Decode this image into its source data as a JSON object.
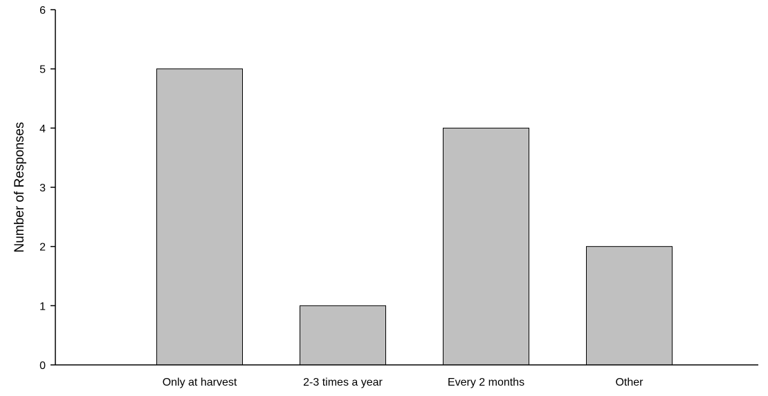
{
  "chart_data": {
    "type": "bar",
    "title": "",
    "xlabel": "",
    "ylabel": "Number of Responses",
    "categories": [
      "Only at harvest",
      "2-3 times a year",
      "Every 2 months",
      "Other"
    ],
    "values": [
      5,
      1,
      4,
      2
    ],
    "ylim": [
      0,
      6
    ],
    "yticks": [
      0,
      1,
      2,
      3,
      4,
      5,
      6
    ],
    "grid": false,
    "legend": "none",
    "colors": {
      "bar_fill": "#c0c0c0",
      "bar_stroke": "#000000",
      "axis": "#000000"
    }
  }
}
